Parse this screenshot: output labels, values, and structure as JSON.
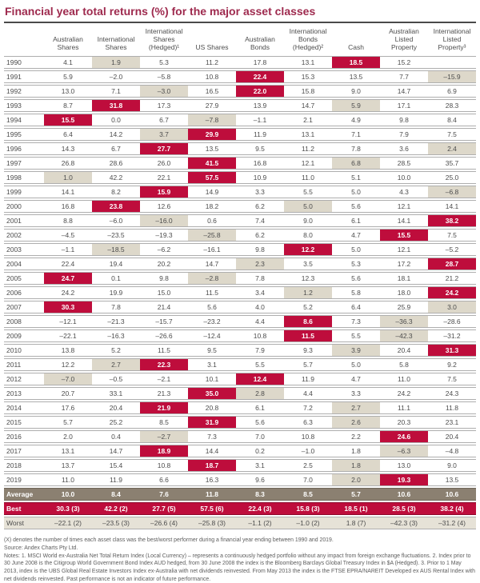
{
  "title": "Financial year total returns (%) for the major asset classes",
  "colors": {
    "title_text": "#9e2a4e",
    "best_bg": "#be0d3c",
    "worst_cell_bg": "#ddd8ca",
    "average_bg": "#8b8071",
    "worst_row_bg": "#e6e2d7",
    "row_border": "#aeaeae",
    "title_rule": "#4a4a4a",
    "body_text": "#4d4d4d"
  },
  "chart_data": {
    "type": "table",
    "title": "Financial year total returns (%) for the major asset classes",
    "columns": [
      "Australian Shares",
      "International Shares",
      "International Shares (Hedged)¹",
      "US Shares",
      "Australian Bonds",
      "International Bonds (Hedged)²",
      "Cash",
      "Australian Listed Property",
      "International Listed Property³"
    ],
    "column_header_lines": [
      [
        "Australian",
        "Shares"
      ],
      [
        "International",
        "Shares"
      ],
      [
        "International",
        "Shares",
        "(Hedged)¹"
      ],
      [
        "US Shares"
      ],
      [
        "Australian",
        "Bonds"
      ],
      [
        "International",
        "Bonds",
        "(Hedged)²"
      ],
      [
        "Cash"
      ],
      [
        "Australian",
        "Listed",
        "Property"
      ],
      [
        "International",
        "Listed",
        "Property³"
      ]
    ],
    "rows": [
      {
        "year": "1990",
        "values": [
          "4.1",
          "1.9",
          "5.3",
          "11.2",
          "17.8",
          "13.1",
          "18.5",
          "15.2",
          ""
        ],
        "best": 6,
        "worst": 1
      },
      {
        "year": "1991",
        "values": [
          "5.9",
          "–2.0",
          "–5.8",
          "10.8",
          "22.4",
          "15.3",
          "13.5",
          "7.7",
          "–15.9"
        ],
        "best": 4,
        "worst": 8
      },
      {
        "year": "1992",
        "values": [
          "13.0",
          "7.1",
          "–3.0",
          "16.5",
          "22.0",
          "15.8",
          "9.0",
          "14.7",
          "6.9"
        ],
        "best": 4,
        "worst": 2
      },
      {
        "year": "1993",
        "values": [
          "8.7",
          "31.8",
          "17.3",
          "27.9",
          "13.9",
          "14.7",
          "5.9",
          "17.1",
          "28.3"
        ],
        "best": 1,
        "worst": 6
      },
      {
        "year": "1994",
        "values": [
          "15.5",
          "0.0",
          "6.7",
          "–7.8",
          "–1.1",
          "2.1",
          "4.9",
          "9.8",
          "8.4"
        ],
        "best": 0,
        "worst": 3
      },
      {
        "year": "1995",
        "values": [
          "6.4",
          "14.2",
          "3.7",
          "29.9",
          "11.9",
          "13.1",
          "7.1",
          "7.9",
          "7.5"
        ],
        "best": 3,
        "worst": 2
      },
      {
        "year": "1996",
        "values": [
          "14.3",
          "6.7",
          "27.7",
          "13.5",
          "9.5",
          "11.2",
          "7.8",
          "3.6",
          "2.4"
        ],
        "best": 2,
        "worst": 8
      },
      {
        "year": "1997",
        "values": [
          "26.8",
          "28.6",
          "26.0",
          "41.5",
          "16.8",
          "12.1",
          "6.8",
          "28.5",
          "35.7"
        ],
        "best": 3,
        "worst": 6
      },
      {
        "year": "1998",
        "values": [
          "1.0",
          "42.2",
          "22.1",
          "57.5",
          "10.9",
          "11.0",
          "5.1",
          "10.0",
          "25.0"
        ],
        "best": 3,
        "worst": 0
      },
      {
        "year": "1999",
        "values": [
          "14.1",
          "8.2",
          "15.9",
          "14.9",
          "3.3",
          "5.5",
          "5.0",
          "4.3",
          "–6.8"
        ],
        "best": 2,
        "worst": 8
      },
      {
        "year": "2000",
        "values": [
          "16.8",
          "23.8",
          "12.6",
          "18.2",
          "6.2",
          "5.0",
          "5.6",
          "12.1",
          "14.1"
        ],
        "best": 1,
        "worst": 5
      },
      {
        "year": "2001",
        "values": [
          "8.8",
          "–6.0",
          "–16.0",
          "0.6",
          "7.4",
          "9.0",
          "6.1",
          "14.1",
          "38.2"
        ],
        "best": 8,
        "worst": 2
      },
      {
        "year": "2002",
        "values": [
          "–4.5",
          "–23.5",
          "–19.3",
          "–25.8",
          "6.2",
          "8.0",
          "4.7",
          "15.5",
          "7.5"
        ],
        "best": 7,
        "worst": 3
      },
      {
        "year": "2003",
        "values": [
          "–1.1",
          "–18.5",
          "–6.2",
          "–16.1",
          "9.8",
          "12.2",
          "5.0",
          "12.1",
          "–5.2"
        ],
        "best": 5,
        "worst": 1
      },
      {
        "year": "2004",
        "values": [
          "22.4",
          "19.4",
          "20.2",
          "14.7",
          "2.3",
          "3.5",
          "5.3",
          "17.2",
          "28.7"
        ],
        "best": 8,
        "worst": 4
      },
      {
        "year": "2005",
        "values": [
          "24.7",
          "0.1",
          "9.8",
          "–2.8",
          "7.8",
          "12.3",
          "5.6",
          "18.1",
          "21.2"
        ],
        "best": 0,
        "worst": 3
      },
      {
        "year": "2006",
        "values": [
          "24.2",
          "19.9",
          "15.0",
          "11.5",
          "3.4",
          "1.2",
          "5.8",
          "18.0",
          "24.2"
        ],
        "best": 8,
        "worst": 5
      },
      {
        "year": "2007",
        "values": [
          "30.3",
          "7.8",
          "21.4",
          "5.6",
          "4.0",
          "5.2",
          "6.4",
          "25.9",
          "3.0"
        ],
        "best": 0,
        "worst": 8
      },
      {
        "year": "2008",
        "values": [
          "–12.1",
          "–21.3",
          "–15.7",
          "–23.2",
          "4.4",
          "8.6",
          "7.3",
          "–36.3",
          "–28.6"
        ],
        "best": 5,
        "worst": 7
      },
      {
        "year": "2009",
        "values": [
          "–22.1",
          "–16.3",
          "–26.6",
          "–12.4",
          "10.8",
          "11.5",
          "5.5",
          "–42.3",
          "–31.2"
        ],
        "best": 5,
        "worst": 7
      },
      {
        "year": "2010",
        "values": [
          "13.8",
          "5.2",
          "11.5",
          "9.5",
          "7.9",
          "9.3",
          "3.9",
          "20.4",
          "31.3"
        ],
        "best": 8,
        "worst": 6
      },
      {
        "year": "2011",
        "values": [
          "12.2",
          "2.7",
          "22.3",
          "3.1",
          "5.5",
          "5.7",
          "5.0",
          "5.8",
          "9.2"
        ],
        "best": 2,
        "worst": 1
      },
      {
        "year": "2012",
        "values": [
          "–7.0",
          "–0.5",
          "–2.1",
          "10.1",
          "12.4",
          "11.9",
          "4.7",
          "11.0",
          "7.5"
        ],
        "best": 4,
        "worst": 0
      },
      {
        "year": "2013",
        "values": [
          "20.7",
          "33.1",
          "21.3",
          "35.0",
          "2.8",
          "4.4",
          "3.3",
          "24.2",
          "24.3"
        ],
        "best": 3,
        "worst": 4
      },
      {
        "year": "2014",
        "values": [
          "17.6",
          "20.4",
          "21.9",
          "20.8",
          "6.1",
          "7.2",
          "2.7",
          "11.1",
          "11.8"
        ],
        "best": 2,
        "worst": 6
      },
      {
        "year": "2015",
        "values": [
          "5.7",
          "25.2",
          "8.5",
          "31.9",
          "5.6",
          "6.3",
          "2.6",
          "20.3",
          "23.1"
        ],
        "best": 3,
        "worst": 6
      },
      {
        "year": "2016",
        "values": [
          "2.0",
          "0.4",
          "–2.7",
          "7.3",
          "7.0",
          "10.8",
          "2.2",
          "24.6",
          "20.4"
        ],
        "best": 7,
        "worst": 2
      },
      {
        "year": "2017",
        "values": [
          "13.1",
          "14.7",
          "18.9",
          "14.4",
          "0.2",
          "–1.0",
          "1.8",
          "–6.3",
          "–4.8"
        ],
        "best": 2,
        "worst": 7
      },
      {
        "year": "2018",
        "values": [
          "13.7",
          "15.4",
          "10.8",
          "18.7",
          "3.1",
          "2.5",
          "1.8",
          "13.0",
          "9.0"
        ],
        "best": 3,
        "worst": 6
      },
      {
        "year": "2019",
        "values": [
          "11.0",
          "11.9",
          "6.6",
          "16.3",
          "9.6",
          "7.0",
          "2.0",
          "19.3",
          "13.5"
        ],
        "best": 7,
        "worst": 6
      }
    ],
    "summary": {
      "average": {
        "label": "Average",
        "values": [
          "10.0",
          "8.4",
          "7.6",
          "11.8",
          "8.3",
          "8.5",
          "5.7",
          "10.6",
          "10.6"
        ]
      },
      "best": {
        "label": "Best",
        "values": [
          "30.3 (3)",
          "42.2 (2)",
          "27.7 (5)",
          "57.5 (6)",
          "22.4 (3)",
          "15.8 (3)",
          "18.5 (1)",
          "28.5 (3)",
          "38.2 (4)"
        ]
      },
      "worst": {
        "label": "Worst",
        "values": [
          "–22.1 (2)",
          "–23.5 (3)",
          "–26.6 (4)",
          "–25.8 (3)",
          "–1.1 (2)",
          "–1.0 (2)",
          "1.8 (7)",
          "–42.3 (3)",
          "–31.2 (4)"
        ]
      }
    },
    "legend": {
      "best_highlight": "crimson cell = best performing asset class of the year",
      "worst_highlight": "beige cell = worst performing asset class of the year"
    }
  },
  "footnotes": {
    "denotes": "(X) denotes the number of times each asset class was the best/worst performer during a financial year ending between 1990 and 2019.",
    "source": "Source: Andex Charts Pty Ltd.",
    "notes": "Notes: 1. MSCI World ex-Australia Net Total Return Index (Local Currency) – represents a continuously hedged portfolio without any impact from foreign exchange fluctuations.  2. Index prior to 30 June 2008 is the Citigroup World Government Bond Index AUD hedged, from 30 June 2008 the index is the Bloomberg Barclays Global Treasury Index in $A (Hedged).  3. Prior to 1 May 2013, index is the UBS Global Real Estate Investors Index ex-Australia with net dividends reinvested. From May 2013 the index is the FTSE EPRA/NAREIT Developed ex AUS Rental Index with net dividends reinvested. Past performance is not an indicator of future performance."
  }
}
